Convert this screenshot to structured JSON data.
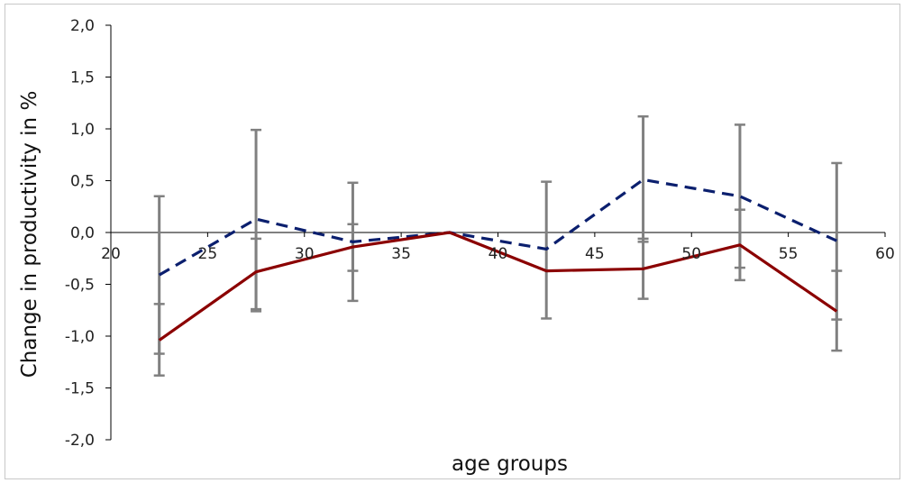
{
  "chart_data": {
    "type": "line",
    "xlabel": "age groups",
    "ylabel": "Change in productivity in %",
    "xlim": [
      20,
      60
    ],
    "ylim": [
      -2.0,
      2.0
    ],
    "x_ticks": [
      "20",
      "25",
      "30",
      "35",
      "40",
      "45",
      "50",
      "55",
      "60"
    ],
    "y_ticks": [
      "2,0",
      "1,5",
      "1,0",
      "0,5",
      "0,0",
      "-0,5",
      "-1,0",
      "-1,5",
      "-2,0"
    ],
    "grid": false,
    "legend": "none",
    "x": [
      22.5,
      27.5,
      32.5,
      37.5,
      42.5,
      47.5,
      52.5,
      57.5
    ],
    "series": [
      {
        "style": "dashed",
        "color": "#0b1f6e",
        "values": [
          -0.41,
          0.13,
          -0.09,
          0.0,
          -0.16,
          0.51,
          0.35,
          -0.08
        ],
        "error_low": [
          -1.17,
          -0.74,
          -0.37,
          0.0,
          -0.83,
          -0.64,
          -0.46,
          -1.14
        ],
        "error_high": [
          0.35,
          0.99,
          0.48,
          0.0,
          0.49,
          1.12,
          1.04,
          0.67
        ]
      },
      {
        "style": "solid",
        "color": "#8b0000",
        "values": [
          -1.04,
          -0.38,
          -0.14,
          0.0,
          -0.37,
          -0.35,
          -0.12,
          -0.76
        ],
        "error_low": [
          -1.38,
          -0.76,
          -0.66,
          0.0,
          -0.61,
          -0.09,
          -0.34,
          -0.84
        ],
        "error_high": [
          -0.69,
          -0.06,
          0.08,
          0.0,
          -0.61,
          -0.06,
          0.22,
          -0.37
        ]
      }
    ],
    "colors": {
      "error_bar": "#808080",
      "axis": "#000000"
    }
  }
}
